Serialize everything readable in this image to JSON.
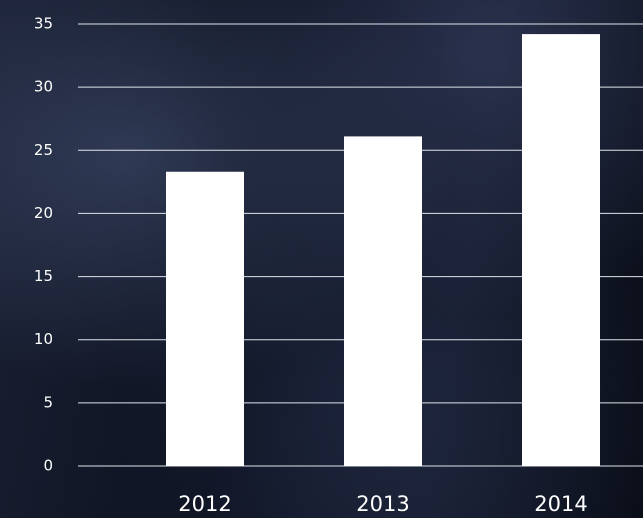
{
  "chart_data": {
    "type": "bar",
    "categories": [
      "2012",
      "2013",
      "2014"
    ],
    "values": [
      23.3,
      26.1,
      34.2
    ],
    "color": "#ffffff",
    "ylim": [
      0,
      35
    ],
    "yticks": [
      0,
      5,
      10,
      15,
      20,
      25,
      30,
      35
    ],
    "grid": true
  }
}
